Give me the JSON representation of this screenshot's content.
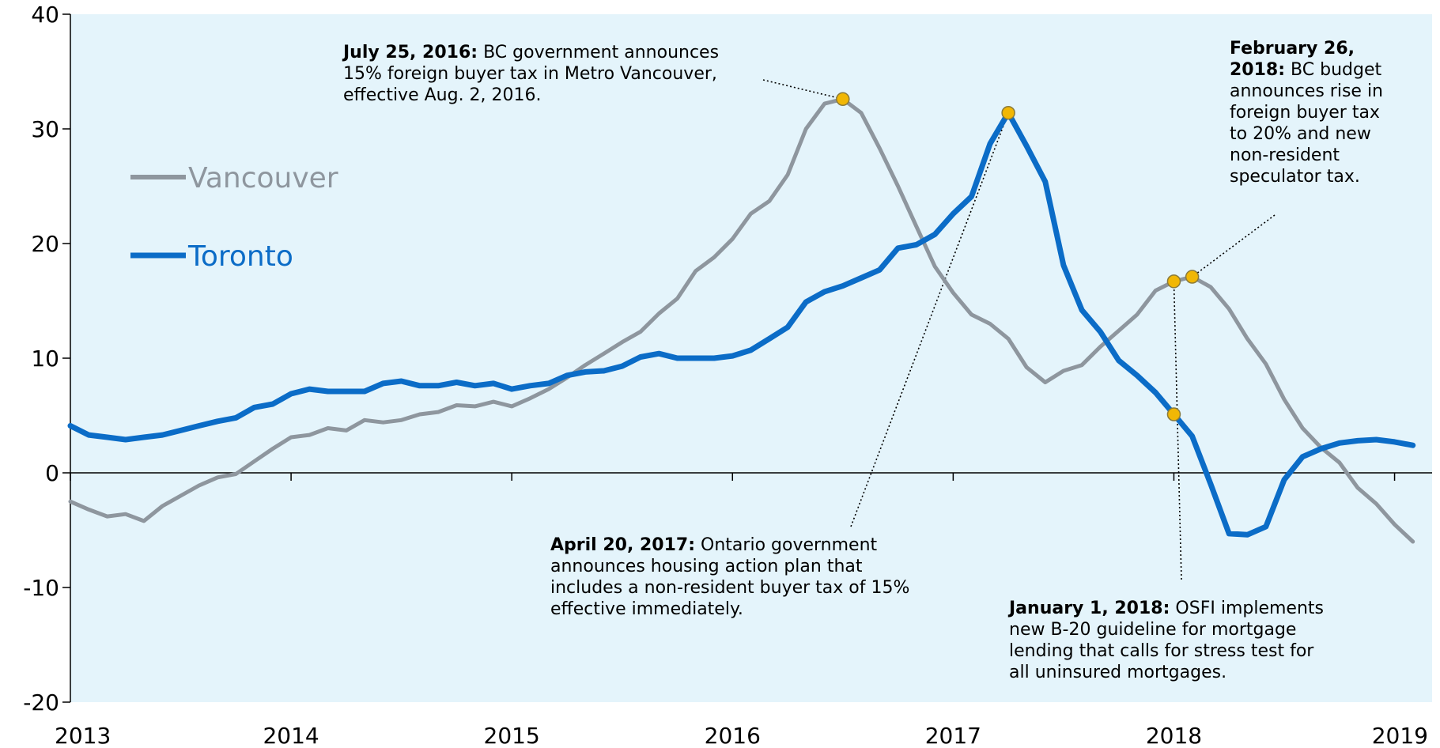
{
  "colors": {
    "plot_background": "#e4f4fb",
    "vancouver": "#8e969e",
    "toronto": "#0b6cc7",
    "marker": "#f1b705"
  },
  "chart_data": {
    "type": "line",
    "title": "",
    "xlabel": "",
    "ylabel": "",
    "ylim": [
      -20,
      40
    ],
    "yticks": [
      "40",
      "30",
      "20",
      "10",
      "0",
      "-10",
      "-20"
    ],
    "xticks": [
      "2013",
      "2014",
      "2015",
      "2016",
      "2017",
      "2018",
      "2019"
    ],
    "grid": false,
    "legend_position": "left",
    "series": [
      {
        "name": "Vancouver",
        "values": [
          [
            2013.0,
            -2.5
          ],
          [
            2013.083,
            -3.2
          ],
          [
            2013.167,
            -3.8
          ],
          [
            2013.25,
            -3.6
          ],
          [
            2013.333,
            -4.2
          ],
          [
            2013.417,
            -2.9
          ],
          [
            2013.5,
            -2.0
          ],
          [
            2013.583,
            -1.1
          ],
          [
            2013.667,
            -0.4
          ],
          [
            2013.75,
            -0.1
          ],
          [
            2013.833,
            1.0
          ],
          [
            2013.917,
            2.1
          ],
          [
            2014.0,
            3.1
          ],
          [
            2014.083,
            3.3
          ],
          [
            2014.167,
            3.9
          ],
          [
            2014.25,
            3.7
          ],
          [
            2014.333,
            4.6
          ],
          [
            2014.417,
            4.4
          ],
          [
            2014.5,
            4.6
          ],
          [
            2014.583,
            5.1
          ],
          [
            2014.667,
            5.3
          ],
          [
            2014.75,
            5.9
          ],
          [
            2014.833,
            5.8
          ],
          [
            2014.917,
            6.2
          ],
          [
            2015.0,
            5.8
          ],
          [
            2015.083,
            6.5
          ],
          [
            2015.167,
            7.3
          ],
          [
            2015.25,
            8.3
          ],
          [
            2015.333,
            9.4
          ],
          [
            2015.417,
            10.4
          ],
          [
            2015.5,
            11.4
          ],
          [
            2015.583,
            12.3
          ],
          [
            2015.667,
            13.9
          ],
          [
            2015.75,
            15.2
          ],
          [
            2015.833,
            17.6
          ],
          [
            2015.917,
            18.8
          ],
          [
            2016.0,
            20.4
          ],
          [
            2016.083,
            22.6
          ],
          [
            2016.167,
            23.7
          ],
          [
            2016.25,
            26.0
          ],
          [
            2016.333,
            30.0
          ],
          [
            2016.417,
            32.2
          ],
          [
            2016.5,
            32.6
          ],
          [
            2016.583,
            31.4
          ],
          [
            2016.667,
            28.3
          ],
          [
            2016.75,
            25.0
          ],
          [
            2016.833,
            21.5
          ],
          [
            2016.917,
            18.0
          ],
          [
            2017.0,
            15.7
          ],
          [
            2017.083,
            13.8
          ],
          [
            2017.167,
            13.0
          ],
          [
            2017.25,
            11.7
          ],
          [
            2017.333,
            9.2
          ],
          [
            2017.417,
            7.9
          ],
          [
            2017.5,
            8.9
          ],
          [
            2017.583,
            9.4
          ],
          [
            2017.667,
            11.0
          ],
          [
            2017.75,
            12.4
          ],
          [
            2017.833,
            13.8
          ],
          [
            2017.917,
            15.9
          ],
          [
            2018.0,
            16.7
          ],
          [
            2018.083,
            17.1
          ],
          [
            2018.167,
            16.2
          ],
          [
            2018.25,
            14.3
          ],
          [
            2018.333,
            11.7
          ],
          [
            2018.417,
            9.5
          ],
          [
            2018.5,
            6.4
          ],
          [
            2018.583,
            3.9
          ],
          [
            2018.667,
            2.2
          ],
          [
            2018.75,
            0.9
          ],
          [
            2018.833,
            -1.3
          ],
          [
            2018.917,
            -2.7
          ],
          [
            2019.0,
            -4.5
          ],
          [
            2019.083,
            -6.0
          ]
        ]
      },
      {
        "name": "Toronto",
        "values": [
          [
            2013.0,
            4.1
          ],
          [
            2013.083,
            3.3
          ],
          [
            2013.167,
            3.1
          ],
          [
            2013.25,
            2.9
          ],
          [
            2013.333,
            3.1
          ],
          [
            2013.417,
            3.3
          ],
          [
            2013.5,
            3.7
          ],
          [
            2013.583,
            4.1
          ],
          [
            2013.667,
            4.5
          ],
          [
            2013.75,
            4.8
          ],
          [
            2013.833,
            5.7
          ],
          [
            2013.917,
            6.0
          ],
          [
            2014.0,
            6.9
          ],
          [
            2014.083,
            7.3
          ],
          [
            2014.167,
            7.1
          ],
          [
            2014.25,
            7.1
          ],
          [
            2014.333,
            7.1
          ],
          [
            2014.417,
            7.8
          ],
          [
            2014.5,
            8.0
          ],
          [
            2014.583,
            7.6
          ],
          [
            2014.667,
            7.6
          ],
          [
            2014.75,
            7.9
          ],
          [
            2014.833,
            7.6
          ],
          [
            2014.917,
            7.8
          ],
          [
            2015.0,
            7.3
          ],
          [
            2015.083,
            7.6
          ],
          [
            2015.167,
            7.8
          ],
          [
            2015.25,
            8.5
          ],
          [
            2015.333,
            8.8
          ],
          [
            2015.417,
            8.9
          ],
          [
            2015.5,
            9.3
          ],
          [
            2015.583,
            10.1
          ],
          [
            2015.667,
            10.4
          ],
          [
            2015.75,
            10.0
          ],
          [
            2015.833,
            10.0
          ],
          [
            2015.917,
            10.0
          ],
          [
            2016.0,
            10.2
          ],
          [
            2016.083,
            10.7
          ],
          [
            2016.167,
            11.7
          ],
          [
            2016.25,
            12.7
          ],
          [
            2016.333,
            14.9
          ],
          [
            2016.417,
            15.8
          ],
          [
            2016.5,
            16.3
          ],
          [
            2016.583,
            17.0
          ],
          [
            2016.667,
            17.7
          ],
          [
            2016.75,
            19.6
          ],
          [
            2016.833,
            19.9
          ],
          [
            2016.917,
            20.8
          ],
          [
            2017.0,
            22.6
          ],
          [
            2017.083,
            24.1
          ],
          [
            2017.167,
            28.7
          ],
          [
            2017.25,
            31.4
          ],
          [
            2017.333,
            28.5
          ],
          [
            2017.417,
            25.4
          ],
          [
            2017.5,
            18.1
          ],
          [
            2017.583,
            14.2
          ],
          [
            2017.667,
            12.3
          ],
          [
            2017.75,
            9.8
          ],
          [
            2017.833,
            8.5
          ],
          [
            2017.917,
            7.0
          ],
          [
            2018.0,
            5.1
          ],
          [
            2018.083,
            3.2
          ],
          [
            2018.167,
            -1.0
          ],
          [
            2018.25,
            -5.3
          ],
          [
            2018.333,
            -5.4
          ],
          [
            2018.417,
            -4.7
          ],
          [
            2018.5,
            -0.6
          ],
          [
            2018.583,
            1.4
          ],
          [
            2018.667,
            2.1
          ],
          [
            2018.75,
            2.6
          ],
          [
            2018.833,
            2.8
          ],
          [
            2018.917,
            2.9
          ],
          [
            2019.0,
            2.7
          ],
          [
            2019.083,
            2.4
          ]
        ]
      }
    ],
    "markers": [
      {
        "series": "Vancouver",
        "x": 2016.5,
        "y": 32.6
      },
      {
        "series": "Toronto",
        "x": 2017.25,
        "y": 31.4
      },
      {
        "series": "Vancouver",
        "x": 2018.0,
        "y": 16.7
      },
      {
        "series": "Vancouver",
        "x": 2018.083,
        "y": 17.1
      },
      {
        "series": "Toronto",
        "x": 2018.0,
        "y": 5.1
      }
    ],
    "annotations": [
      {
        "id": "july-2016",
        "bold": "July 25, 2016",
        "lines": [
          "BC government announces",
          "15% foreign buyer tax in Metro Vancouver,",
          "effective Aug. 2, 2016."
        ]
      },
      {
        "id": "feb-2018",
        "bold": "February 26, 2018",
        "lines": [
          "BC budget",
          "announces rise in",
          "foreign buyer tax",
          "to 20%  and new",
          "non-resident",
          "speculator tax."
        ]
      },
      {
        "id": "april-2017",
        "bold": "April 20, 2017",
        "lines": [
          "Ontario government",
          "announces housing action plan that",
          "includes a non-resident buyer tax of 15%",
          "effective immediately."
        ]
      },
      {
        "id": "jan-2018",
        "bold": "January 1, 2018",
        "lines": [
          "OSFI implements",
          "new B-20 guideline for mortgage",
          "lending that calls for stress test for",
          "all uninsured mortgages."
        ]
      }
    ]
  }
}
